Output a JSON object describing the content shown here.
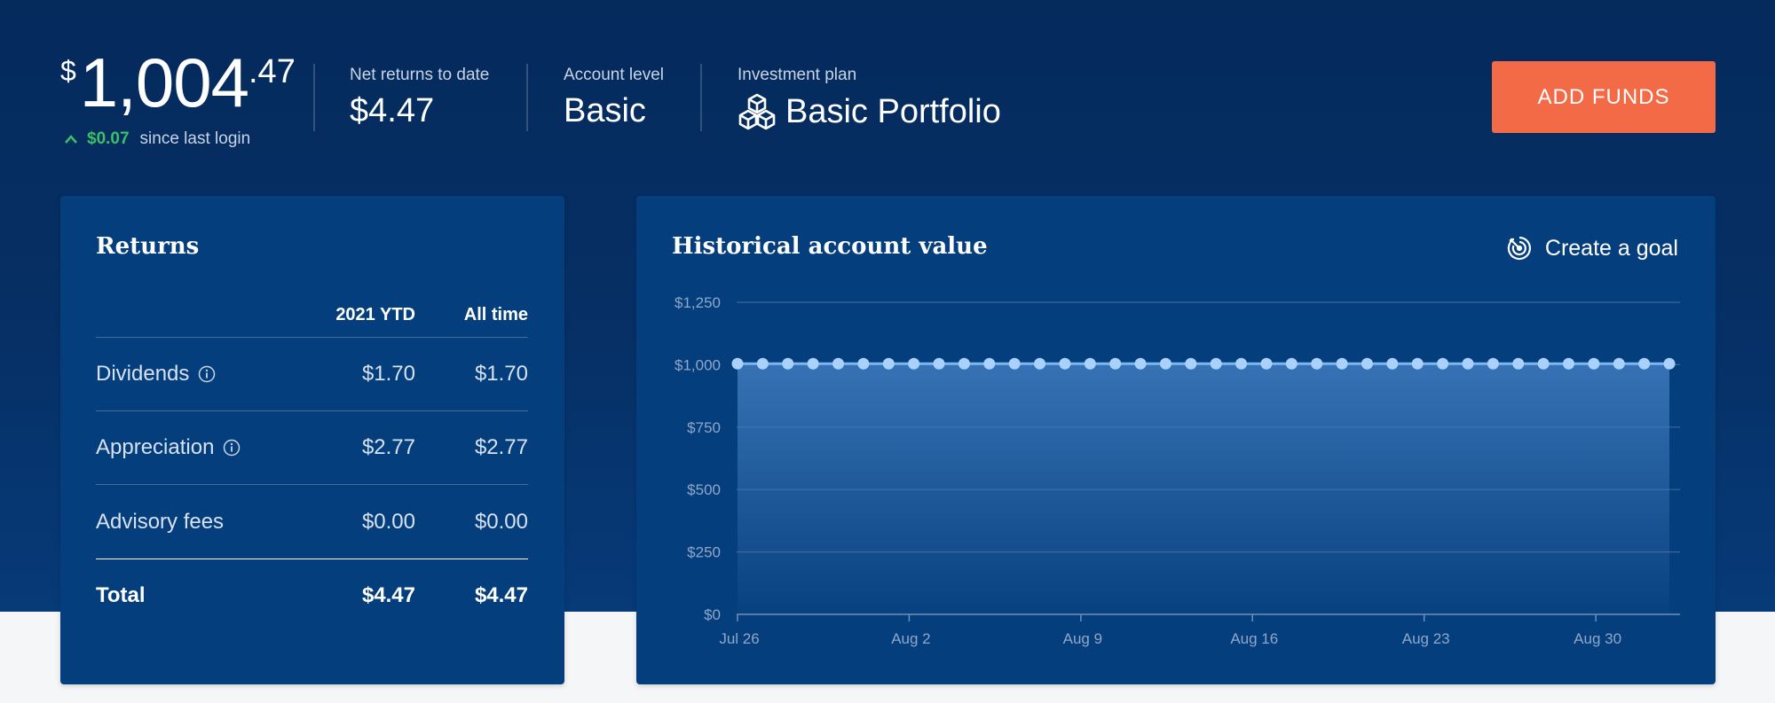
{
  "header": {
    "balance": {
      "currency": "$",
      "whole": "1,004",
      "cents": ".47"
    },
    "since_login": {
      "change": "$0.07",
      "label": "since last login"
    },
    "net_returns": {
      "label": "Net returns to date",
      "value": "$4.47"
    },
    "account_level": {
      "label": "Account level",
      "value": "Basic"
    },
    "investment_plan": {
      "label": "Investment plan",
      "value": "Basic Portfolio"
    },
    "add_funds_label": "ADD FUNDS"
  },
  "returns": {
    "title": "Returns",
    "columns": [
      "2021 YTD",
      "All time"
    ],
    "rows": [
      {
        "name": "Dividends",
        "ytd": "$1.70",
        "all": "$1.70",
        "info": true
      },
      {
        "name": "Appreciation",
        "ytd": "$2.77",
        "all": "$2.77",
        "info": true
      },
      {
        "name": "Advisory fees",
        "ytd": "$0.00",
        "all": "$0.00",
        "info": false
      }
    ],
    "total": {
      "name": "Total",
      "ytd": "$4.47",
      "all": "$4.47"
    }
  },
  "chart_card": {
    "title": "Historical account value",
    "create_goal_label": "Create a goal"
  },
  "chart_data": {
    "type": "area",
    "title": "Historical account value",
    "y_ticks": [
      "$0",
      "$250",
      "$500",
      "$750",
      "$1,000",
      "$1,250"
    ],
    "ylim": [
      0,
      1250
    ],
    "x_ticks": [
      "Jul 26",
      "Aug 2",
      "Aug 9",
      "Aug 16",
      "Aug 23",
      "Aug 30"
    ],
    "x_range_days": [
      0,
      38
    ],
    "points_count": 38,
    "value": 1004,
    "grid": true,
    "colors": {
      "line": "#7eb6f2",
      "point": "#a9d1fb"
    }
  },
  "colors": {
    "accent": "#f26a46",
    "positive": "#37c26a",
    "card": "#053e7c"
  }
}
